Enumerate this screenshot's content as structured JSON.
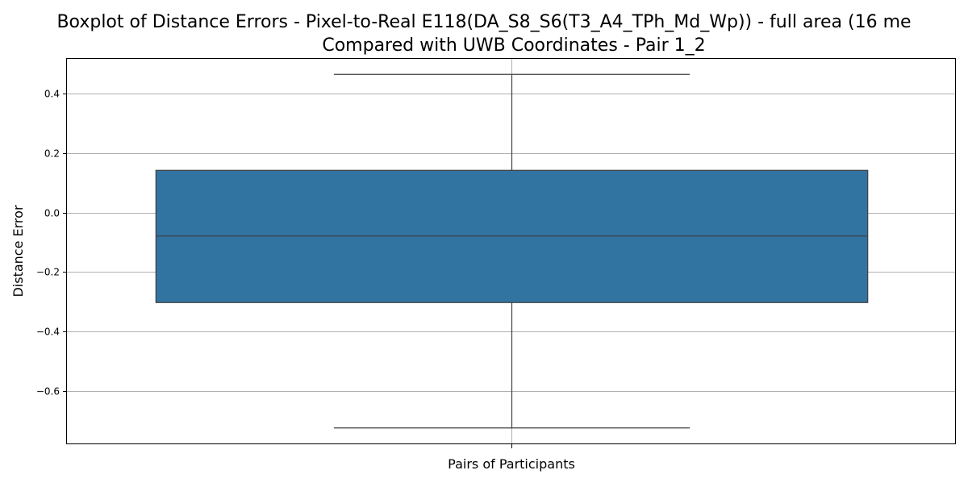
{
  "chart_data": {
    "type": "box",
    "title": "Boxplot of Distance Errors - Pixel-to-Real E118(DA_S8_S6(T3_A4_TPh_Md_Wp)) - full area (16 me",
    "subtitle": "Compared with UWB Coordinates - Pair 1_2",
    "xlabel": "Pairs of Participants",
    "ylabel": "Distance Error",
    "categories": [
      ""
    ],
    "ylim": [
      -0.78,
      0.52
    ],
    "yticks": [
      -0.6,
      -0.4,
      -0.2,
      0.0,
      0.2,
      0.4
    ],
    "ytick_labels": [
      "−0.6",
      "−0.4",
      "−0.2",
      "0.0",
      "0.2",
      "0.4"
    ],
    "grid": true,
    "boxes": [
      {
        "whisker_low": -0.725,
        "q1": -0.303,
        "median": -0.079,
        "q3": 0.142,
        "whisker_high": 0.465
      }
    ],
    "colors": {
      "box_fill": "#3274a1",
      "box_edge": "#3f3f3f",
      "grid": "#b0b0b0",
      "axes": "#000000"
    }
  }
}
